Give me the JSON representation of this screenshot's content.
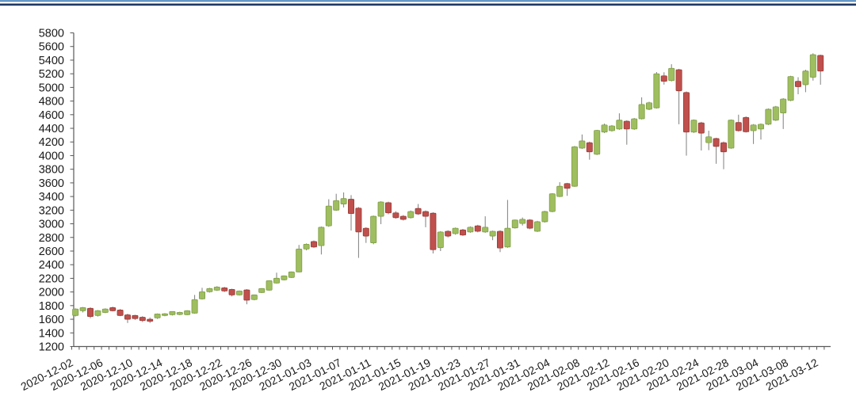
{
  "page": {
    "background": "#ffffff",
    "top_rules": [
      {
        "name": "top-rule-light",
        "color": "#2e74b5",
        "thickness": 1.6,
        "y": 1.2
      },
      {
        "name": "top-rule-dark",
        "color": "#1f3864",
        "thickness": 2.6,
        "y": 5.8
      }
    ]
  },
  "chart_data": {
    "type": "candlestick",
    "title": "",
    "legend": "none",
    "grid": "off",
    "x_axis": {
      "labels_every": 4,
      "rotation_deg": -27,
      "tick_labels": [
        "2020-12-02",
        "2020-12-06",
        "2020-12-10",
        "2020-12-14",
        "2020-12-18",
        "2020-12-22",
        "2020-12-26",
        "2020-12-30",
        "2021-01-03",
        "2021-01-07",
        "2021-01-11",
        "2021-01-15",
        "2021-01-19",
        "2021-01-23",
        "2021-01-27",
        "2021-01-31",
        "2021-02-04",
        "2021-02-08",
        "2021-02-12",
        "2021-02-16",
        "2021-02-20",
        "2021-02-24",
        "2021-02-28",
        "2021-03-04",
        "2021-03-08",
        "2021-03-12"
      ]
    },
    "y_axis": {
      "min": 1200,
      "max": 5800,
      "step": 200,
      "tick_labels": [
        "5800",
        "5600",
        "5400",
        "5200",
        "5000",
        "4800",
        "4600",
        "4400",
        "4200",
        "4000",
        "3800",
        "3600",
        "3400",
        "3200",
        "3000",
        "2800",
        "2600",
        "2400",
        "2200",
        "2000",
        "1800",
        "1600",
        "1400",
        "1200"
      ]
    },
    "colors": {
      "up": "#9fbe5f",
      "up_border": "#7e9d46",
      "down": "#c0504d",
      "down_border": "#963c38",
      "wick": "#7f7f7f",
      "axis": "#595959",
      "label": "#1a1a1a"
    },
    "ohlc": [
      [
        "2020-12-02",
        1655,
        1760,
        1640,
        1750
      ],
      [
        "2020-12-03",
        1725,
        1780,
        1700,
        1770
      ],
      [
        "2020-12-04",
        1760,
        1775,
        1615,
        1640
      ],
      [
        "2020-12-05",
        1655,
        1735,
        1640,
        1725
      ],
      [
        "2020-12-06",
        1700,
        1760,
        1690,
        1750
      ],
      [
        "2020-12-07",
        1770,
        1785,
        1715,
        1725
      ],
      [
        "2020-12-08",
        1735,
        1750,
        1645,
        1655
      ],
      [
        "2020-12-09",
        1665,
        1680,
        1545,
        1600
      ],
      [
        "2020-12-10",
        1655,
        1665,
        1590,
        1610
      ],
      [
        "2020-12-11",
        1630,
        1645,
        1560,
        1580
      ],
      [
        "2020-12-12",
        1600,
        1625,
        1545,
        1570
      ],
      [
        "2020-12-13",
        1620,
        1685,
        1605,
        1678
      ],
      [
        "2020-12-14",
        1655,
        1690,
        1645,
        1680
      ],
      [
        "2020-12-15",
        1667,
        1715,
        1655,
        1713
      ],
      [
        "2020-12-16",
        1670,
        1710,
        1660,
        1701
      ],
      [
        "2020-12-17",
        1667,
        1732,
        1660,
        1725
      ],
      [
        "2020-12-18",
        1690,
        1957,
        1682,
        1888
      ],
      [
        "2020-12-19",
        1899,
        2061,
        1890,
        2003
      ],
      [
        "2020-12-20",
        2003,
        2060,
        1992,
        2050
      ],
      [
        "2020-12-21",
        2026,
        2085,
        2015,
        2073
      ],
      [
        "2020-12-22",
        2061,
        2075,
        2000,
        2015
      ],
      [
        "2020-12-23",
        2038,
        2048,
        1935,
        1957
      ],
      [
        "2020-12-24",
        1957,
        2022,
        1948,
        2015
      ],
      [
        "2020-12-25",
        2030,
        2042,
        1820,
        1880
      ],
      [
        "2020-12-26",
        1888,
        1962,
        1878,
        1957
      ],
      [
        "2020-12-27",
        1992,
        2056,
        1985,
        2050
      ],
      [
        "2020-12-28",
        2027,
        2172,
        2020,
        2166
      ],
      [
        "2020-12-29",
        2131,
        2283,
        2124,
        2201
      ],
      [
        "2020-12-30",
        2178,
        2242,
        2170,
        2236
      ],
      [
        "2020-12-31",
        2213,
        2300,
        2206,
        2294
      ],
      [
        "2021-01-01",
        2294,
        2690,
        2288,
        2630
      ],
      [
        "2021-01-02",
        2630,
        2712,
        2610,
        2700
      ],
      [
        "2021-01-03",
        2740,
        2755,
        2648,
        2660
      ],
      [
        "2021-01-04",
        2680,
        2960,
        2550,
        2950
      ],
      [
        "2021-01-05",
        2970,
        3360,
        2955,
        3260
      ],
      [
        "2021-01-06",
        3200,
        3440,
        3190,
        3340
      ],
      [
        "2021-01-07",
        3290,
        3460,
        3240,
        3370
      ],
      [
        "2021-01-08",
        3360,
        3420,
        2900,
        3150
      ],
      [
        "2021-01-09",
        3230,
        3245,
        2500,
        2880
      ],
      [
        "2021-01-10",
        2935,
        2950,
        2720,
        2820
      ],
      [
        "2021-01-11",
        2720,
        3120,
        2700,
        3110
      ],
      [
        "2021-01-12",
        3110,
        3330,
        2995,
        3320
      ],
      [
        "2021-01-13",
        3310,
        3325,
        3140,
        3160
      ],
      [
        "2021-01-14",
        3160,
        3185,
        3075,
        3090
      ],
      [
        "2021-01-15",
        3110,
        3128,
        3048,
        3065
      ],
      [
        "2021-01-16",
        3090,
        3195,
        3078,
        3180
      ],
      [
        "2021-01-17",
        3225,
        3290,
        3130,
        3145
      ],
      [
        "2021-01-18",
        3180,
        3195,
        2950,
        3110
      ],
      [
        "2021-01-19",
        3155,
        3170,
        2565,
        2620
      ],
      [
        "2021-01-20",
        2650,
        2892,
        2600,
        2880
      ],
      [
        "2021-01-21",
        2890,
        2905,
        2800,
        2820
      ],
      [
        "2021-01-22",
        2855,
        2945,
        2840,
        2935
      ],
      [
        "2021-01-23",
        2910,
        2925,
        2822,
        2835
      ],
      [
        "2021-01-24",
        2880,
        2962,
        2868,
        2950
      ],
      [
        "2021-01-25",
        2970,
        2985,
        2875,
        2890
      ],
      [
        "2021-01-26",
        2880,
        3110,
        2868,
        2950
      ],
      [
        "2021-01-27",
        2820,
        2900,
        2760,
        2890
      ],
      [
        "2021-01-28",
        2890,
        2905,
        2585,
        2645
      ],
      [
        "2021-01-29",
        2660,
        3350,
        2648,
        2935
      ],
      [
        "2021-01-30",
        2940,
        3062,
        2930,
        3055
      ],
      [
        "2021-01-31",
        3005,
        3092,
        2975,
        3065
      ],
      [
        "2021-02-01",
        3055,
        3068,
        2920,
        2935
      ],
      [
        "2021-02-02",
        2890,
        3042,
        2880,
        3030
      ],
      [
        "2021-02-03",
        3030,
        3190,
        3018,
        3180
      ],
      [
        "2021-02-04",
        3180,
        3448,
        3170,
        3440
      ],
      [
        "2021-02-05",
        3400,
        3610,
        3392,
        3550
      ],
      [
        "2021-02-06",
        3590,
        3600,
        3410,
        3520
      ],
      [
        "2021-02-07",
        3550,
        4140,
        3542,
        4130
      ],
      [
        "2021-02-08",
        4110,
        4310,
        4098,
        4215
      ],
      [
        "2021-02-09",
        4190,
        4205,
        3940,
        4055
      ],
      [
        "2021-02-10",
        4020,
        4378,
        4008,
        4370
      ],
      [
        "2021-02-11",
        4345,
        4470,
        4330,
        4450
      ],
      [
        "2021-02-12",
        4365,
        4448,
        4352,
        4435
      ],
      [
        "2021-02-13",
        4390,
        4620,
        4378,
        4520
      ],
      [
        "2021-02-14",
        4505,
        4518,
        4160,
        4390
      ],
      [
        "2021-02-15",
        4390,
        4552,
        4378,
        4540
      ],
      [
        "2021-02-16",
        4540,
        4855,
        4530,
        4750
      ],
      [
        "2021-02-17",
        4680,
        4790,
        4668,
        4775
      ],
      [
        "2021-02-18",
        4700,
        5225,
        4690,
        5200
      ],
      [
        "2021-02-19",
        5170,
        5222,
        5042,
        5090
      ],
      [
        "2021-02-20",
        5100,
        5340,
        5088,
        5280
      ],
      [
        "2021-02-21",
        5260,
        5272,
        4460,
        4950
      ],
      [
        "2021-02-22",
        4925,
        4940,
        4000,
        4345
      ],
      [
        "2021-02-23",
        4345,
        4530,
        4332,
        4520
      ],
      [
        "2021-02-24",
        4480,
        4495,
        4075,
        4330
      ],
      [
        "2021-02-25",
        4190,
        4365,
        4080,
        4275
      ],
      [
        "2021-02-26",
        4250,
        4262,
        3880,
        4135
      ],
      [
        "2021-02-27",
        4190,
        4205,
        3800,
        4055
      ],
      [
        "2021-02-28",
        4110,
        4530,
        4100,
        4520
      ],
      [
        "2021-03-01",
        4485,
        4600,
        4352,
        4365
      ],
      [
        "2021-03-02",
        4560,
        4575,
        4338,
        4350
      ],
      [
        "2021-03-03",
        4365,
        4462,
        4170,
        4450
      ],
      [
        "2021-03-04",
        4390,
        4472,
        4235,
        4460
      ],
      [
        "2021-03-05",
        4460,
        4692,
        4448,
        4680
      ],
      [
        "2021-03-06",
        4520,
        4728,
        4508,
        4715
      ],
      [
        "2021-03-07",
        4625,
        4842,
        4390,
        4830
      ],
      [
        "2021-03-08",
        4810,
        5170,
        4798,
        5160
      ],
      [
        "2021-03-09",
        5090,
        5150,
        4900,
        5010
      ],
      [
        "2021-03-10",
        5040,
        5260,
        4930,
        5240
      ],
      [
        "2021-03-11",
        5150,
        5500,
        5100,
        5480
      ],
      [
        "2021-03-12",
        5470,
        5480,
        5040,
        5240
      ]
    ]
  }
}
